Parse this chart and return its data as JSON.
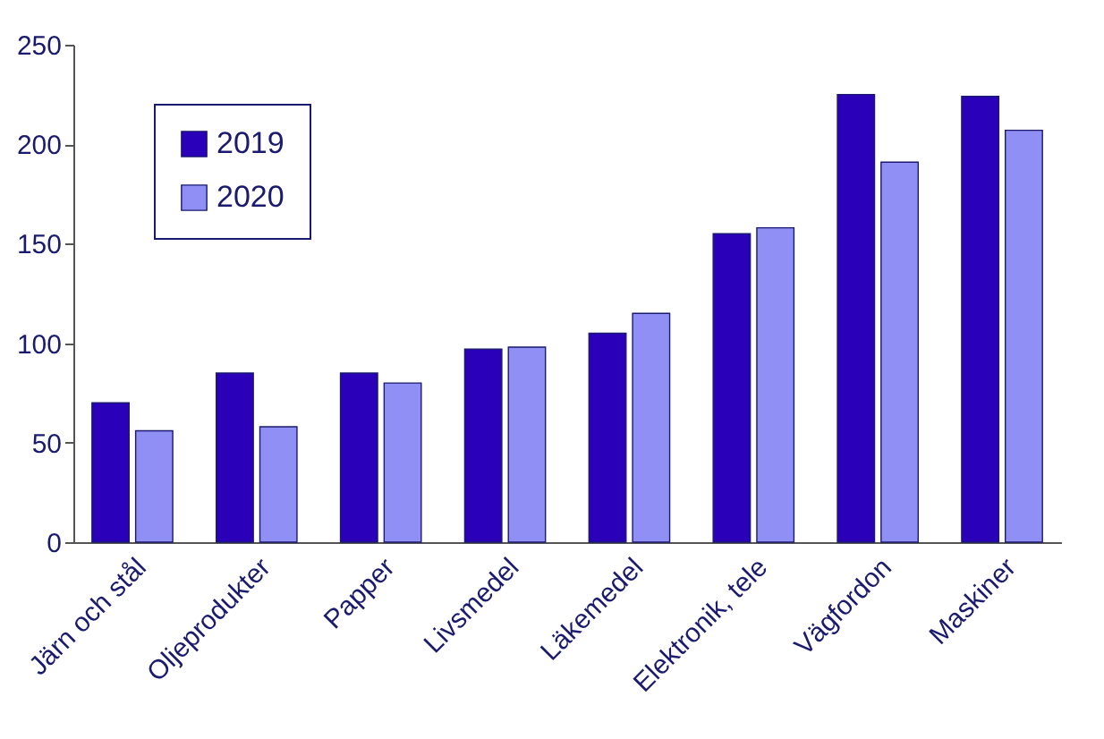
{
  "chart_data": {
    "type": "bar",
    "categories": [
      "Järn och stål",
      "Oljeprodukter",
      "Papper",
      "Livsmedel",
      "Läkemedel",
      "Elektronik, tele",
      "Vägfordon",
      "Maskiner"
    ],
    "series": [
      {
        "name": "2019",
        "color": "#2a00b8",
        "values": [
          70,
          85,
          85,
          97,
          105,
          155,
          225,
          224
        ]
      },
      {
        "name": "2020",
        "color": "#8f8ff5",
        "values": [
          56,
          58,
          80,
          98,
          115,
          158,
          191,
          207
        ]
      }
    ],
    "ylim": [
      0,
      250
    ],
    "yticks": [
      0,
      50,
      100,
      150,
      200,
      250
    ],
    "grid": false,
    "legend": "top left"
  }
}
